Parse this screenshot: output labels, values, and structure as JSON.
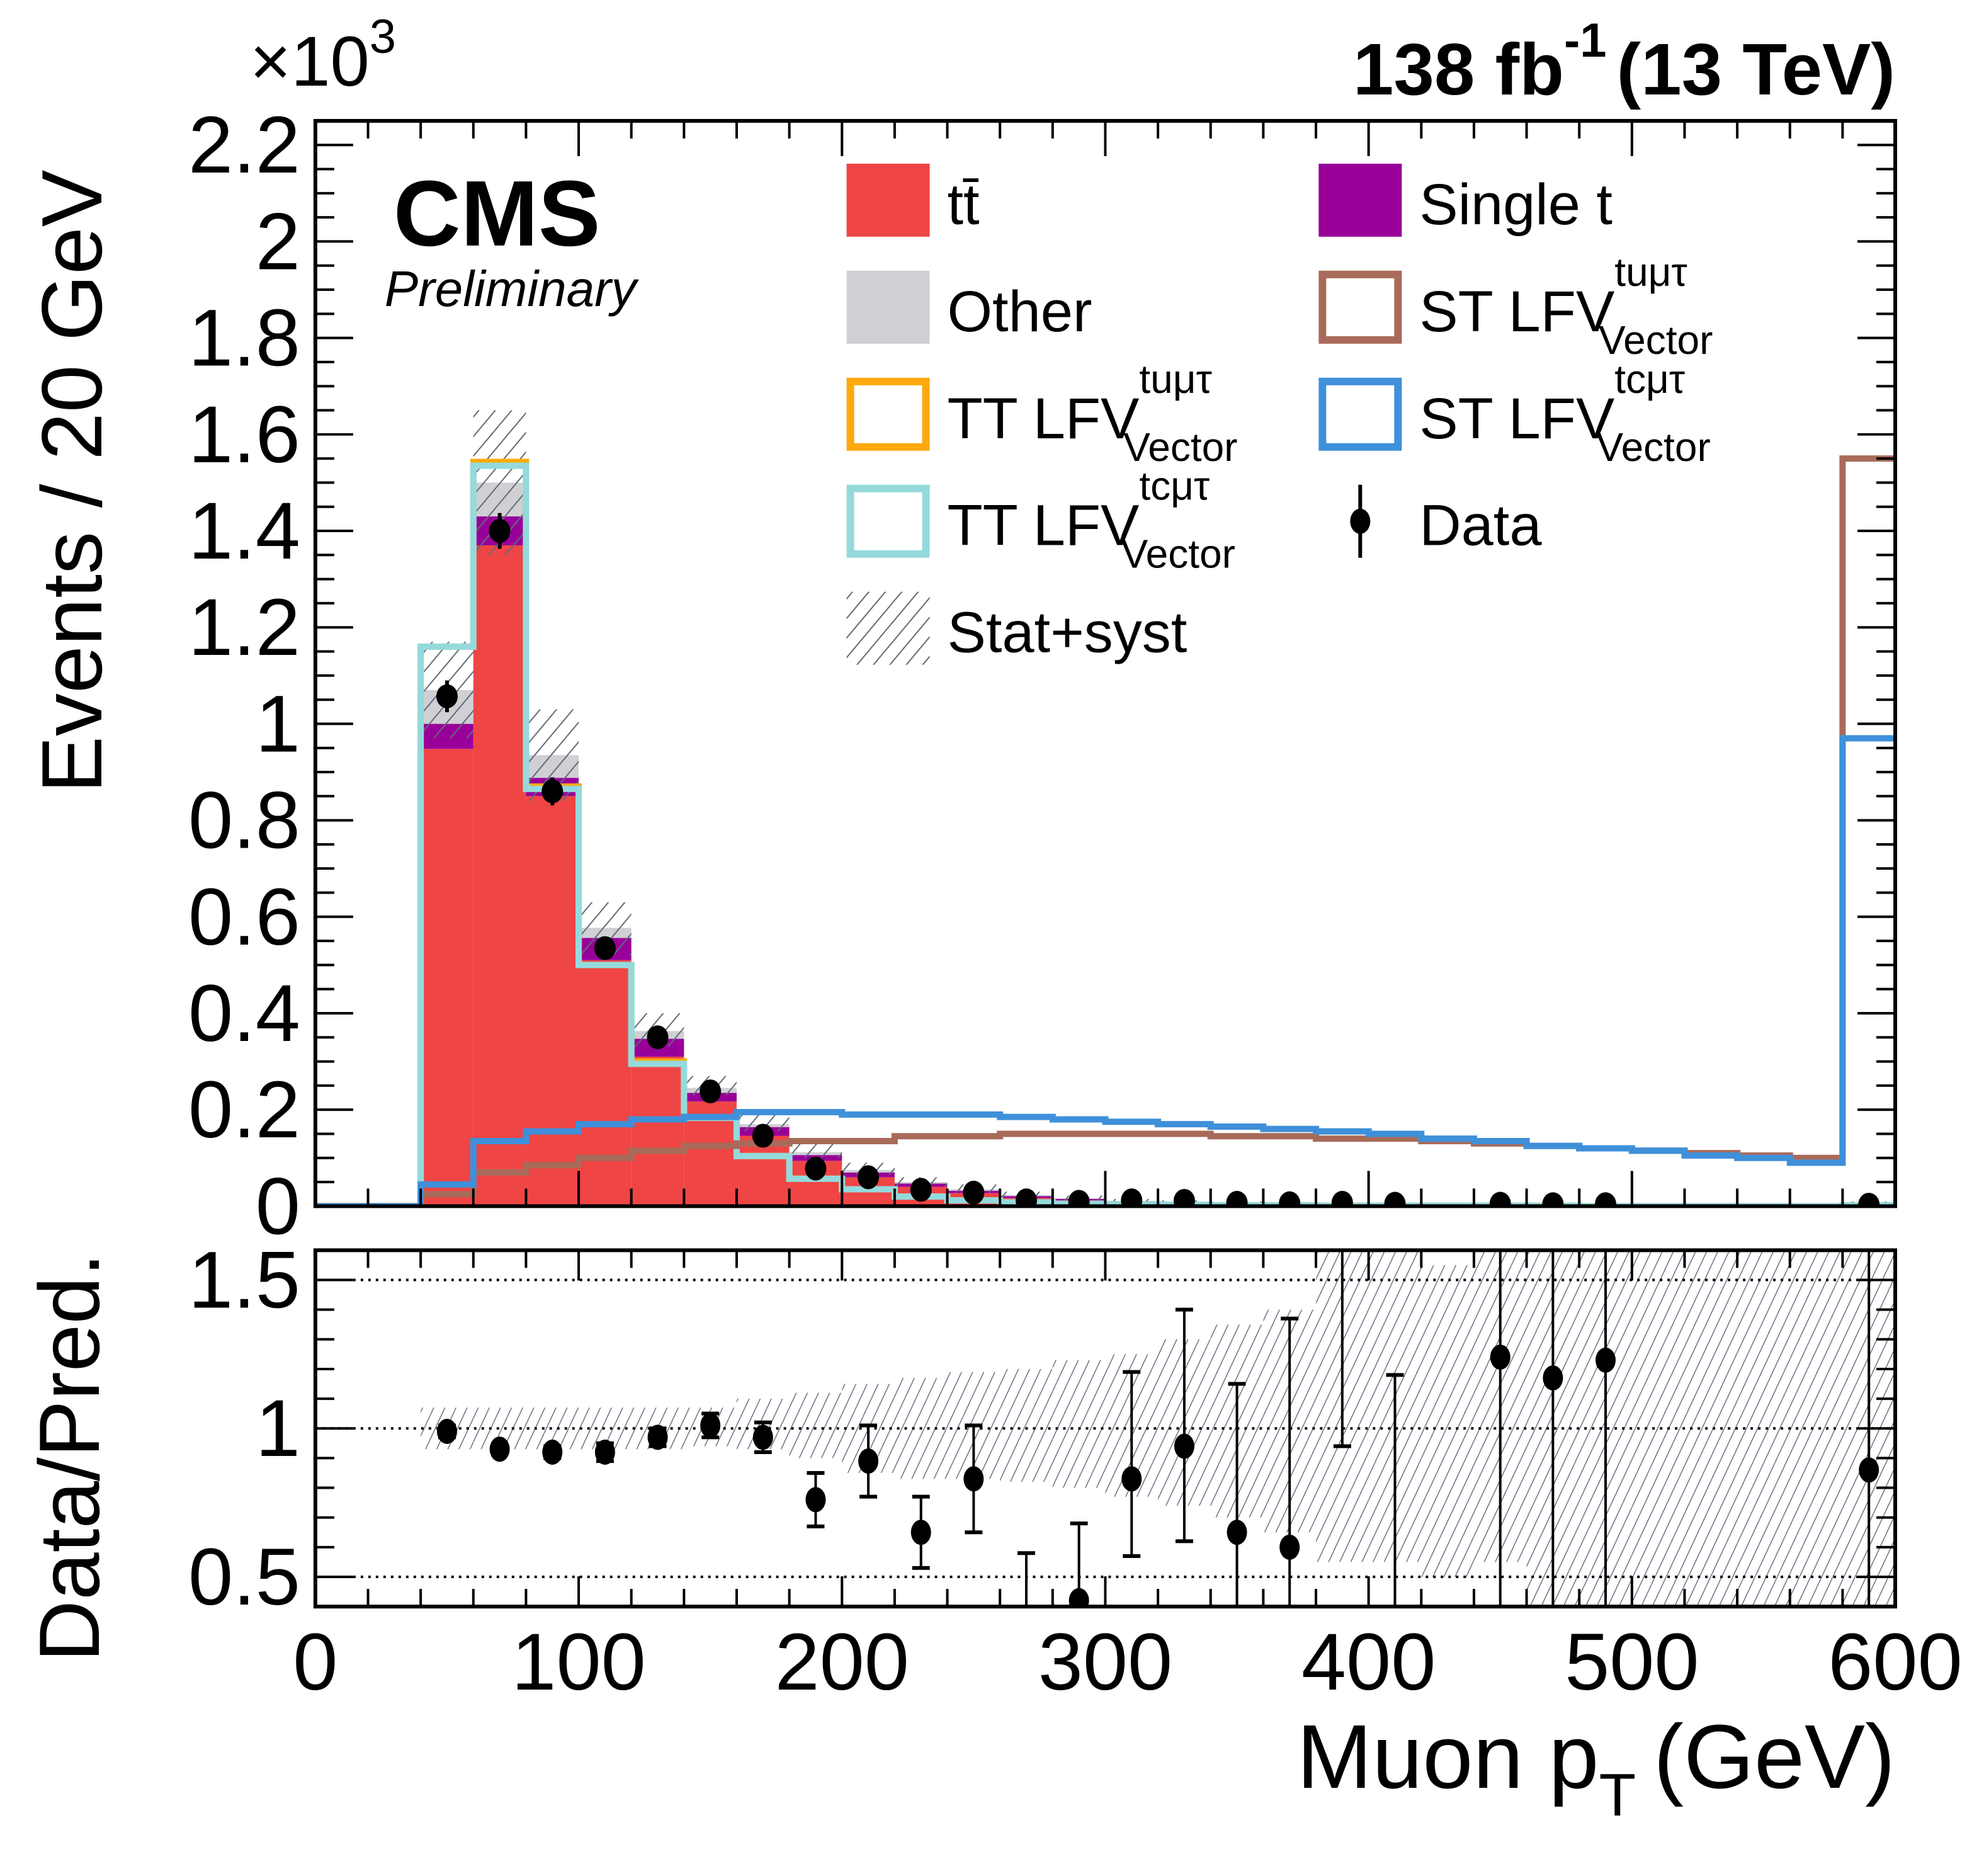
{
  "header": {
    "experiment": "CMS",
    "status": "Preliminary",
    "lumi_value": "138 fb",
    "lumi_exponent": "-1",
    "energy": "(13 TeV)",
    "y_multiplier_base": "×10",
    "y_multiplier_exp": "3"
  },
  "chart_data": [
    {
      "panel": "main",
      "type": "bar",
      "stacked": true,
      "xlabel": "Muon p",
      "xlabel_sub": "T",
      "xlabel_unit": "(GeV)",
      "ylabel": "Events / 20 GeV",
      "y_scale_factor": 1000,
      "xlim": [
        0,
        600
      ],
      "ylim": [
        0,
        2.25
      ],
      "yticks": [
        0,
        0.2,
        0.4,
        0.6,
        0.8,
        1,
        1.2,
        1.4,
        1.6,
        1.8,
        2,
        2.2
      ],
      "ytick_labels": [
        "0",
        "0.2",
        "0.4",
        "0.6",
        "0.8",
        "1",
        "1.2",
        "1.4",
        "1.6",
        "1.8",
        "2",
        "2.2"
      ],
      "xticks": [
        0,
        100,
        200,
        300,
        400,
        500,
        600
      ],
      "xtick_labels": [
        "0",
        "100",
        "200",
        "300",
        "400",
        "500",
        "600"
      ],
      "bin_edges": [
        40,
        60,
        80,
        100,
        120,
        140,
        160,
        180,
        200,
        220,
        240,
        260,
        280,
        300,
        320,
        340,
        360,
        380,
        400,
        420,
        440,
        460,
        480,
        500,
        520,
        540,
        560,
        580,
        600
      ],
      "legend_position": "top-right",
      "legend": [
        {
          "key": "ttbar",
          "label": "tt̄",
          "style": "fill",
          "color": "#ef4545"
        },
        {
          "key": "single_t",
          "label": "Single t",
          "style": "fill",
          "color": "#990099"
        },
        {
          "key": "other",
          "label": "Other",
          "style": "fill",
          "color": "#d0d0d4"
        },
        {
          "key": "st_lfv_tumutau",
          "label": "ST LFV",
          "sup": "tuμτ",
          "sub": "Vector",
          "style": "line",
          "color": "#a96b59"
        },
        {
          "key": "tt_lfv_tumutau",
          "label": "TT LFV",
          "sup": "tuμτ",
          "sub": "Vector",
          "style": "line",
          "color": "#ffa90e"
        },
        {
          "key": "st_lfv_tcmutau",
          "label": "ST LFV",
          "sup": "tcμτ",
          "sub": "Vector",
          "style": "line",
          "color": "#3f90da"
        },
        {
          "key": "tt_lfv_tcmutau",
          "label": "TT LFV",
          "sup": "tcμτ",
          "sub": "Vector",
          "style": "line",
          "color": "#94dadd"
        },
        {
          "key": "data",
          "label": "Data",
          "style": "marker",
          "color": "#000000"
        },
        {
          "key": "unc",
          "label": "Stat+syst",
          "style": "hatch",
          "color": "#5f6b7a"
        }
      ],
      "series": [
        {
          "name": "ttbar",
          "values": [
            0.948,
            1.37,
            0.85,
            0.51,
            0.31,
            0.217,
            0.146,
            0.094,
            0.06,
            0.04,
            0.027,
            0.017,
            0.012,
            0.008,
            0.006,
            0.005,
            0.004,
            0.003,
            0.003,
            0.002,
            0.002,
            0.002,
            0.001,
            0.001,
            0.001,
            0.001,
            0.001,
            0.004
          ]
        },
        {
          "name": "single_t",
          "values": [
            0.052,
            0.06,
            0.038,
            0.046,
            0.037,
            0.018,
            0.018,
            0.012,
            0.01,
            0.007,
            0.005,
            0.004,
            0.003,
            0.002,
            0.002,
            0.001,
            0.001,
            0.001,
            0.001,
            0.001,
            0.001,
            0.001,
            0.001,
            0.0,
            0.0,
            0.0,
            0.0,
            0.001
          ]
        },
        {
          "name": "other",
          "values": [
            0.07,
            0.07,
            0.047,
            0.021,
            0.016,
            0.01,
            0.006,
            0.006,
            0.005,
            0.003,
            0.003,
            0.002,
            0.002,
            0.001,
            0.001,
            0.001,
            0.001,
            0.001,
            0.001,
            0.001,
            0.001,
            0.0,
            0.0,
            0.0,
            0.0,
            0.0,
            0.0,
            0.001
          ]
        },
        {
          "name": "st_lfv_tumutau",
          "values": [
            0.025,
            0.07,
            0.085,
            0.1,
            0.115,
            0.125,
            0.13,
            0.135,
            0.135,
            0.145,
            0.145,
            0.15,
            0.15,
            0.15,
            0.15,
            0.145,
            0.145,
            0.14,
            0.14,
            0.135,
            0.13,
            0.125,
            0.12,
            0.115,
            0.11,
            0.105,
            0.1,
            1.55
          ]
        },
        {
          "name": "st_lfv_tcmutau",
          "values": [
            0.045,
            0.135,
            0.155,
            0.17,
            0.18,
            0.185,
            0.195,
            0.195,
            0.19,
            0.19,
            0.19,
            0.185,
            0.18,
            0.175,
            0.17,
            0.165,
            0.16,
            0.155,
            0.15,
            0.14,
            0.135,
            0.125,
            0.12,
            0.115,
            0.105,
            0.1,
            0.09,
            0.97
          ]
        },
        {
          "name": "tt_lfv_tumutau",
          "values": [
            1.16,
            1.543,
            0.87,
            0.5,
            0.3,
            0.183,
            0.104,
            0.057,
            0.035,
            0.02,
            0.012,
            0.008,
            0.005,
            0.004,
            0.003,
            0.002,
            0.002,
            0.001,
            0.001,
            0.001,
            0.001,
            0.001,
            0.0,
            0.0,
            0.0,
            0.0,
            0.0,
            0.002
          ]
        },
        {
          "name": "tt_lfv_tcmutau",
          "values": [
            1.16,
            1.535,
            0.865,
            0.5,
            0.295,
            0.183,
            0.104,
            0.057,
            0.035,
            0.02,
            0.012,
            0.008,
            0.005,
            0.004,
            0.003,
            0.002,
            0.002,
            0.001,
            0.001,
            0.001,
            0.001,
            0.001,
            0.0,
            0.0,
            0.0,
            0.0,
            0.0,
            0.002
          ]
        },
        {
          "name": "unc_up",
          "values": [
            1.17,
            1.65,
            1.03,
            0.63,
            0.4,
            0.27,
            0.19,
            0.13,
            0.09,
            0.06,
            0.045,
            0.03,
            0.022,
            0.015,
            0.012,
            0.01,
            0.008,
            0.007,
            0.006,
            0.005,
            0.004,
            0.004,
            0.003,
            0.003,
            0.003,
            0.003,
            0.003,
            0.01
          ]
        },
        {
          "name": "unc_down",
          "values": [
            0.97,
            1.35,
            0.84,
            0.52,
            0.33,
            0.23,
            0.155,
            0.1,
            0.065,
            0.04,
            0.028,
            0.018,
            0.012,
            0.008,
            0.006,
            0.005,
            0.004,
            0.003,
            0.002,
            0.002,
            0.001,
            0.001,
            0.0,
            0.0,
            0.0,
            0.0,
            0.0,
            0.0
          ]
        }
      ],
      "data_points": {
        "x": [
          50,
          70,
          90,
          110,
          130,
          150,
          170,
          190,
          210,
          230,
          250,
          270,
          290,
          310,
          330,
          350,
          370,
          390,
          410,
          450,
          470,
          490,
          590
        ],
        "y": [
          1.057,
          1.4,
          0.86,
          0.535,
          0.35,
          0.238,
          0.146,
          0.078,
          0.06,
          0.034,
          0.028,
          0.012,
          0.009,
          0.012,
          0.011,
          0.007,
          0.006,
          0.007,
          0.005,
          0.005,
          0.004,
          0.004,
          0.003
        ],
        "yerr": [
          0.033,
          0.037,
          0.029,
          0.023,
          0.019,
          0.015,
          0.012,
          0.009,
          0.008,
          0.006,
          0.005,
          0.003,
          0.003,
          0.003,
          0.003,
          0.003,
          0.002,
          0.003,
          0.002,
          0.002,
          0.002,
          0.002,
          0.002
        ]
      }
    },
    {
      "panel": "ratio",
      "type": "scatter",
      "xlabel": "Muon p",
      "xlabel_sub": "T",
      "xlabel_unit": "(GeV)",
      "ylabel": "Data/Pred.",
      "xlim": [
        0,
        600
      ],
      "ylim": [
        0.4,
        1.6
      ],
      "yticks": [
        0.5,
        1,
        1.5
      ],
      "ytick_labels": [
        "0.5",
        "1",
        "1.5"
      ],
      "gridlines": [
        0.5,
        1,
        1.5
      ],
      "points": {
        "x": [
          50,
          70,
          90,
          110,
          130,
          150,
          170,
          190,
          210,
          230,
          250,
          270,
          290,
          310,
          330,
          350,
          370,
          390,
          410,
          450,
          470,
          490,
          590
        ],
        "y": [
          0.99,
          0.93,
          0.92,
          0.92,
          0.97,
          1.01,
          0.97,
          0.76,
          0.89,
          0.65,
          0.83,
          0.35,
          0.42,
          0.83,
          0.94,
          0.65,
          0.6,
          1.9,
          0.2,
          1.24,
          1.17,
          1.23,
          0.86
        ],
        "err_low": [
          0.02,
          0.01,
          0.02,
          0.03,
          0.03,
          0.04,
          0.05,
          0.09,
          0.12,
          0.12,
          0.18,
          0.3,
          0.3,
          0.26,
          0.32,
          0.4,
          0.4,
          0.96,
          0.4,
          1.0,
          1.0,
          1.0,
          1.0
        ],
        "err_high": [
          0.02,
          0.01,
          0.02,
          0.03,
          0.03,
          0.04,
          0.05,
          0.09,
          0.12,
          0.12,
          0.18,
          0.23,
          0.26,
          0.36,
          0.46,
          0.5,
          0.77,
          1.0,
          0.98,
          1.0,
          1.0,
          1.0,
          1.0
        ]
      },
      "band": {
        "bin_edges": [
          40,
          60,
          80,
          100,
          120,
          140,
          160,
          180,
          200,
          220,
          240,
          260,
          280,
          300,
          320,
          340,
          360,
          380,
          400,
          420,
          440,
          460,
          480,
          500,
          520,
          540,
          560,
          580,
          600
        ],
        "low": [
          0.93,
          0.93,
          0.93,
          0.93,
          0.93,
          0.94,
          0.93,
          0.9,
          0.85,
          0.83,
          0.83,
          0.82,
          0.8,
          0.77,
          0.74,
          0.7,
          0.65,
          0.55,
          0.55,
          0.5,
          0.55,
          0.4,
          0.4,
          0.4,
          0.4,
          0.4,
          0.4,
          0.4
        ],
        "high": [
          1.07,
          1.07,
          1.07,
          1.07,
          1.07,
          1.07,
          1.1,
          1.12,
          1.15,
          1.17,
          1.19,
          1.2,
          1.23,
          1.25,
          1.3,
          1.35,
          1.4,
          1.6,
          1.6,
          1.55,
          1.6,
          1.6,
          1.6,
          1.6,
          1.6,
          1.6,
          1.6,
          1.6
        ]
      }
    }
  ]
}
